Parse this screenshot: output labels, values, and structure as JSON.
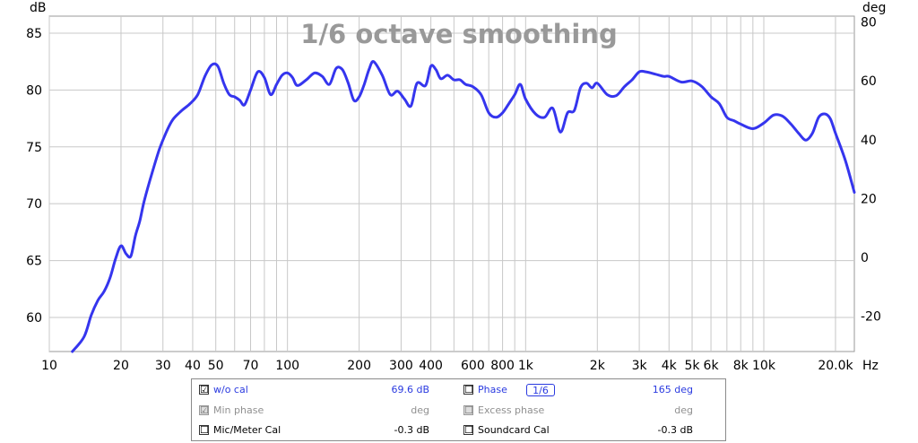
{
  "chart_data": {
    "type": "line",
    "title": "1/6 octave smoothing",
    "x_scale": "log",
    "x_unit": "Hz",
    "xlim": [
      10,
      24000
    ],
    "y_left_label": "dB",
    "y_right_label": "deg",
    "ylim": [
      57,
      86.5
    ],
    "y_right_lim": [
      -32,
      82
    ],
    "grid": true,
    "x_tick_labels": [
      {
        "v": 10,
        "t": "10"
      },
      {
        "v": 20,
        "t": "20"
      },
      {
        "v": 30,
        "t": "30"
      },
      {
        "v": 40,
        "t": "40"
      },
      {
        "v": 50,
        "t": "50"
      },
      {
        "v": 70,
        "t": "70"
      },
      {
        "v": 100,
        "t": "100"
      },
      {
        "v": 200,
        "t": "200"
      },
      {
        "v": 300,
        "t": "300"
      },
      {
        "v": 400,
        "t": "400"
      },
      {
        "v": 600,
        "t": "600"
      },
      {
        "v": 800,
        "t": "800"
      },
      {
        "v": 1000,
        "t": "1k"
      },
      {
        "v": 2000,
        "t": "2k"
      },
      {
        "v": 3000,
        "t": "3k"
      },
      {
        "v": 4000,
        "t": "4k"
      },
      {
        "v": 5000,
        "t": "5k"
      },
      {
        "v": 6000,
        "t": "6k"
      },
      {
        "v": 8000,
        "t": "8k"
      },
      {
        "v": 10000,
        "t": "10k"
      },
      {
        "v": 20000,
        "t": "20.0k"
      }
    ],
    "y_left_ticks": [
      60,
      65,
      70,
      75,
      80,
      85
    ],
    "y_right_ticks": [
      -20,
      0,
      20,
      40,
      60,
      80
    ],
    "series": [
      {
        "color": "#3535ee",
        "x": [
          12.5,
          14,
          15,
          16,
          17,
          18,
          19,
          20,
          21,
          22,
          23,
          24,
          25,
          27,
          29,
          31,
          33,
          36,
          39,
          42,
          45,
          48,
          51,
          54,
          57,
          60,
          63,
          66,
          70,
          75,
          80,
          85,
          90,
          95,
          100,
          105,
          110,
          120,
          130,
          140,
          150,
          160,
          170,
          180,
          190,
          200,
          210,
          220,
          230,
          250,
          270,
          290,
          310,
          330,
          350,
          380,
          400,
          420,
          440,
          470,
          500,
          530,
          560,
          600,
          650,
          700,
          750,
          800,
          850,
          900,
          950,
          1000,
          1100,
          1200,
          1300,
          1400,
          1500,
          1600,
          1700,
          1800,
          1900,
          2000,
          2200,
          2400,
          2600,
          2800,
          3000,
          3200,
          3500,
          3800,
          4000,
          4500,
          5000,
          5500,
          6000,
          6500,
          7000,
          7500,
          8000,
          9000,
          10000,
          11000,
          12000,
          13000,
          14000,
          15000,
          16000,
          17000,
          18000,
          19000,
          20000,
          22000,
          24000
        ],
        "values": [
          57,
          58.3,
          60.2,
          61.5,
          62.3,
          63.5,
          65.2,
          66.3,
          65.6,
          65.4,
          67.2,
          68.5,
          70.2,
          72.7,
          74.8,
          76.3,
          77.4,
          78.2,
          78.8,
          79.6,
          81.2,
          82.2,
          82.1,
          80.6,
          79.6,
          79.4,
          79.1,
          78.7,
          80.0,
          81.6,
          81.1,
          79.6,
          80.5,
          81.3,
          81.5,
          81.1,
          80.4,
          80.9,
          81.5,
          81.2,
          80.5,
          81.9,
          81.8,
          80.6,
          79.1,
          79.4,
          80.5,
          81.8,
          82.5,
          81.3,
          79.6,
          79.9,
          79.2,
          78.6,
          80.6,
          80.4,
          82.1,
          81.8,
          81.0,
          81.3,
          80.9,
          80.9,
          80.5,
          80.3,
          79.6,
          78.0,
          77.6,
          78.0,
          78.8,
          79.6,
          80.5,
          79.2,
          77.9,
          77.6,
          78.4,
          76.3,
          78.0,
          78.2,
          80.2,
          80.6,
          80.2,
          80.6,
          79.6,
          79.5,
          80.3,
          80.9,
          81.6,
          81.6,
          81.4,
          81.2,
          81.2,
          80.7,
          80.8,
          80.3,
          79.4,
          78.8,
          77.6,
          77.3,
          77.0,
          76.6,
          77.1,
          77.8,
          77.7,
          77.0,
          76.2,
          75.6,
          76.2,
          77.6,
          77.9,
          77.5,
          76.2,
          73.8,
          71.0
        ]
      }
    ]
  },
  "legend": {
    "wo_cal": {
      "checked": "☑",
      "label": "w/o cal",
      "smoothing": "1/6",
      "value": "69.6 dB"
    },
    "min_phase": {
      "checked": "☑",
      "label": "Min phase",
      "value": "deg"
    },
    "mic_cal": {
      "checked": "☐",
      "label": "Mic/Meter Cal",
      "value": "-0.3 dB"
    },
    "phase": {
      "checked": "☐",
      "label": "Phase",
      "value": "165 deg"
    },
    "excess_phase": {
      "checked": "☐",
      "label": "Excess phase",
      "value": "deg"
    },
    "soundcard_cal": {
      "checked": "☐",
      "label": "Soundcard Cal",
      "value": "-0.3 dB"
    }
  }
}
